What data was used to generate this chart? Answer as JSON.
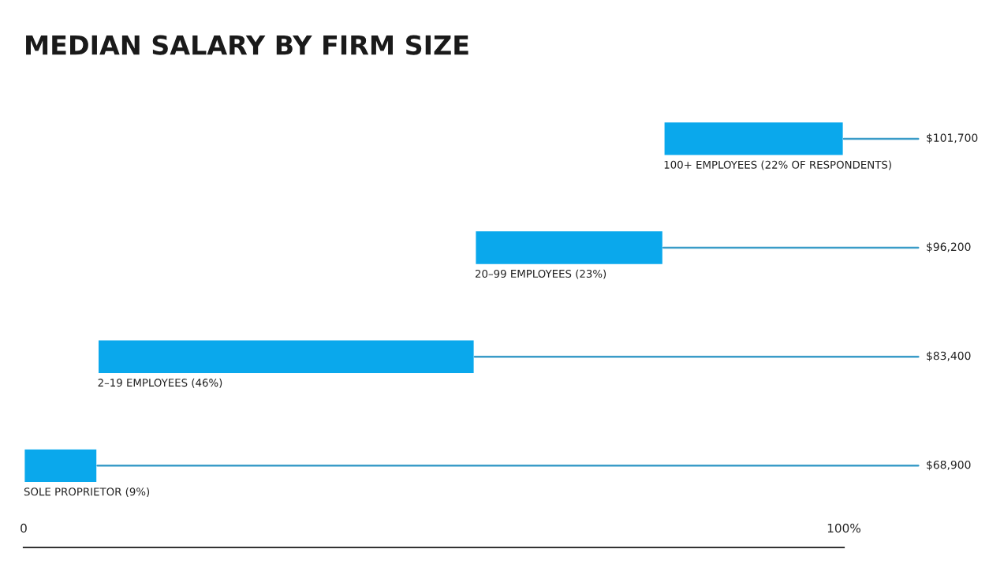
{
  "chart_data": {
    "type": "bar",
    "orientation": "horizontal",
    "title": "MEDIAN SALARY BY FIRM SIZE",
    "categories": [
      "100+ EMPLOYEES (22% OF RESPONDENTS)",
      "20–99 EMPLOYEES (23%)",
      "2–19 EMPLOYEES (46%)",
      "SOLE PROPRIETOR (9%)"
    ],
    "values": [
      22,
      23,
      46,
      9
    ],
    "base": [
      78,
      55,
      9,
      0
    ],
    "color": "#0aa8ec",
    "xlim": [
      0,
      100
    ],
    "xticks": [
      0,
      {
        "value": 100,
        "label": "100%"
      }
    ],
    "annotations": [
      {
        "text": "$101,700",
        "x": 100,
        "y": "100+ EMPLOYEES (22% OF RESPONDENTS)"
      },
      {
        "text": "$96,200",
        "x": 78,
        "y": "20–99 EMPLOYEES (23%)"
      },
      {
        "text": "$83,400",
        "x": 55,
        "y": "2–19 EMPLOYEES (46%)"
      },
      {
        "text": "$68,900",
        "x": 9,
        "y": "SOLE PROPRIETOR (9%)"
      }
    ],
    "grid": false,
    "legend": false
  }
}
